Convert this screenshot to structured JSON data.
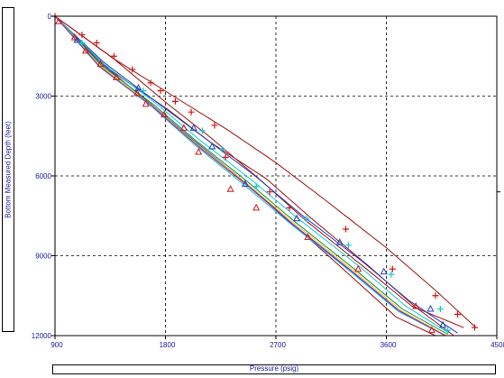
{
  "chart_data": {
    "type": "line",
    "title": "",
    "xlabel": "Pressure (psig)",
    "ylabel": "Bottom Measured Depth (feet)",
    "xlim": [
      900,
      4500
    ],
    "ylim": [
      0,
      12000
    ],
    "y_inverted": true,
    "grid": true,
    "grid_style": "dashed",
    "xticks": [
      "900",
      "1800",
      "2700",
      "3600",
      "4500"
    ],
    "yticks": [
      "0",
      "3000",
      "6000",
      "9000",
      "12000"
    ],
    "colors": {
      "axis_text": "#1a1aa8",
      "outer_envelope": "#a01010",
      "blue_band": "#1f3fbf",
      "cyan_band": "#10c8d8",
      "green_center": "#109030",
      "yellow_center": "#e8d020",
      "magenta_center": "#b020b0",
      "marker_red": "#d01818"
    },
    "series": [
      {
        "color_key": "outer_envelope",
        "x": [
          900,
          1380,
          1900,
          2300,
          2700,
          3100,
          3600,
          4000,
          4330
        ],
        "y": [
          0,
          1600,
          3100,
          4250,
          5500,
          6900,
          8700,
          10300,
          11700
        ]
      },
      {
        "color_key": "outer_envelope",
        "x": [
          900,
          1340,
          1820,
          2170,
          2620,
          2990,
          3460,
          3830,
          4150
        ],
        "y": [
          0,
          2000,
          3500,
          4750,
          6100,
          7600,
          9400,
          10900,
          12000
        ]
      },
      {
        "color_key": "outer_envelope",
        "x": [
          900,
          1300,
          1750,
          2070,
          2490,
          2860,
          3320,
          3680,
          4000
        ],
        "y": [
          0,
          2000,
          3600,
          4900,
          6400,
          7900,
          9800,
          11300,
          12000
        ]
      },
      {
        "color_key": "outer_envelope",
        "x": [
          900,
          1380,
          1820,
          2180,
          2560,
          2950,
          3440,
          3810,
          4230
        ],
        "y": [
          0,
          1600,
          3300,
          4600,
          6100,
          7700,
          9500,
          10900,
          11700
        ]
      },
      {
        "color_key": "blue_band",
        "x": [
          900,
          1290,
          1720,
          2100,
          2530,
          2920,
          3400,
          3790,
          4180
        ],
        "y": [
          0,
          1700,
          3200,
          4500,
          6000,
          7500,
          9200,
          10700,
          11900
        ]
      },
      {
        "color_key": "blue_band",
        "x": [
          900,
          1270,
          1680,
          2040,
          2440,
          2800,
          3290,
          3680,
          4080
        ],
        "y": [
          0,
          1750,
          3300,
          4700,
          6200,
          7700,
          9500,
          11000,
          12000
        ]
      },
      {
        "color_key": "cyan_band",
        "x": [
          900,
          1300,
          1730,
          2080,
          2500,
          2880,
          3380,
          3760,
          4110
        ],
        "y": [
          0,
          1800,
          3300,
          4650,
          6150,
          7600,
          9400,
          10900,
          11900
        ]
      },
      {
        "color_key": "cyan_band",
        "x": [
          900,
          1260,
          1690,
          2030,
          2430,
          2820,
          3310,
          3700,
          4080
        ],
        "y": [
          0,
          1900,
          3400,
          4800,
          6300,
          7800,
          9600,
          11100,
          12000
        ]
      },
      {
        "color_key": "green_center",
        "x": [
          900,
          1280,
          1710,
          2060,
          2470,
          2850,
          3340,
          3730,
          4100
        ],
        "y": [
          0,
          1850,
          3350,
          4720,
          6220,
          7700,
          9500,
          11000,
          11950
        ]
      },
      {
        "color_key": "yellow_center",
        "x": [
          900,
          1280,
          1700,
          2050,
          2460,
          2840,
          3330,
          3720,
          4090
        ],
        "y": [
          0,
          1900,
          3400,
          4780,
          6270,
          7750,
          9550,
          11050,
          12000
        ]
      },
      {
        "color_key": "magenta_center",
        "x": [
          900,
          1270,
          1700,
          2045,
          2450,
          2830,
          3320,
          3710,
          4080
        ],
        "y": [
          0,
          1920,
          3420,
          4800,
          6300,
          7780,
          9580,
          11080,
          12000
        ]
      }
    ],
    "markers": [
      {
        "symbol": "plus",
        "color_key": "marker_red",
        "x": [
          900,
          1120,
          1240,
          1380,
          1530,
          1680,
          1760,
          1880,
          2010,
          2200,
          2290,
          2650,
          2810,
          3270,
          3650,
          4000,
          4320,
          4180
        ],
        "y": [
          0,
          700,
          1000,
          1500,
          2000,
          2500,
          2800,
          3200,
          3600,
          4100,
          5300,
          6600,
          7200,
          8000,
          9500,
          10500,
          11700,
          11200
        ]
      },
      {
        "symbol": "triangle",
        "color_key": "marker_red",
        "x": [
          930,
          1060,
          1150,
          1270,
          1400,
          1570,
          1640,
          1790,
          1950,
          2070,
          2330,
          2540,
          2960,
          3370,
          3840,
          3970
        ],
        "y": [
          200,
          800,
          1300,
          1800,
          2300,
          2900,
          3300,
          3700,
          4200,
          5100,
          6500,
          7200,
          8300,
          9500,
          10900,
          11800
        ]
      },
      {
        "symbol": "triangle",
        "color_key": "blue_band",
        "x": [
          1080,
          1580,
          2030,
          2180,
          2450,
          2870,
          3220,
          3580,
          3960,
          4060
        ],
        "y": [
          900,
          2700,
          4200,
          4900,
          6300,
          7600,
          8500,
          9600,
          11000,
          11600
        ]
      },
      {
        "symbol": "plus",
        "color_key": "cyan_band",
        "x": [
          1120,
          1620,
          2100,
          2260,
          2540,
          2950,
          3290,
          3640,
          4040,
          4100
        ],
        "y": [
          1000,
          2800,
          4300,
          5000,
          6400,
          7600,
          8600,
          9700,
          11000,
          11800
        ]
      }
    ]
  }
}
